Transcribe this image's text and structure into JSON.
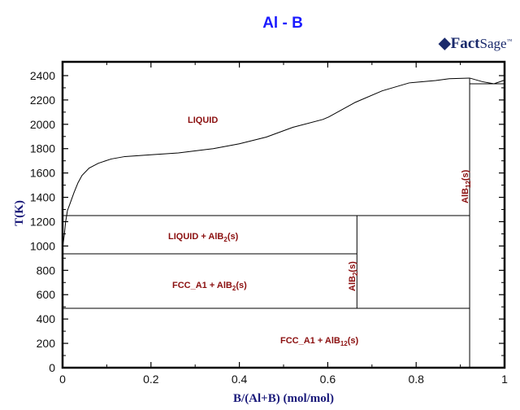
{
  "header": {
    "title": "Al - B",
    "logo": "FactSage"
  },
  "chart_data": {
    "type": "line",
    "title": "Al - B",
    "xlabel": "B/(Al+B) (mol/mol)",
    "ylabel": "T(K)",
    "xlim": [
      0,
      1
    ],
    "ylim": [
      0,
      2500
    ],
    "x_ticks": [
      "0",
      "0.2",
      "0.4",
      "0.6",
      "0.8",
      "1"
    ],
    "y_ticks": [
      "0",
      "200",
      "400",
      "600",
      "800",
      "1000",
      "1200",
      "1400",
      "1600",
      "1800",
      "2000",
      "2200",
      "2400"
    ],
    "liquidus": {
      "x": [
        0.0,
        0.004,
        0.007,
        0.011,
        0.017,
        0.026,
        0.035,
        0.044,
        0.06,
        0.081,
        0.11,
        0.141,
        0.2,
        0.262,
        0.341,
        0.4,
        0.461,
        0.521,
        0.589,
        0.602,
        0.662,
        0.723,
        0.784,
        0.844,
        0.875,
        0.921
      ],
      "y": [
        980,
        1095,
        1200,
        1290,
        1350,
        1440,
        1520,
        1580,
        1640,
        1680,
        1715,
        1735,
        1750,
        1765,
        1800,
        1840,
        1895,
        1975,
        2040,
        2060,
        2180,
        2275,
        2340,
        2360,
        2375,
        2380
      ]
    },
    "liquidus_b_rich": {
      "x": [
        0.921,
        0.95,
        0.976,
        1.0
      ],
      "y": [
        2380,
        2350,
        2333,
        2363
      ]
    },
    "invariants": [
      {
        "T": 2333,
        "x_range": [
          0.921,
          1.0
        ]
      },
      {
        "T": 1250,
        "x_range": [
          0.0,
          0.921
        ]
      },
      {
        "T": 936,
        "x_range": [
          0.0,
          0.666
        ]
      },
      {
        "T": 488,
        "x_range": [
          0.0,
          0.921
        ]
      }
    ],
    "compounds": [
      {
        "name": "AlB2(s)",
        "x": 0.666,
        "T_range": [
          488,
          1250
        ]
      },
      {
        "name": "AlB12(s)",
        "x": 0.921,
        "T_range": [
          0,
          2380
        ]
      }
    ],
    "regions": [
      {
        "label": "LIQUID",
        "x": 0.3,
        "T": 2030
      },
      {
        "label": "LIQUID + AlB2(s)",
        "x": 0.32,
        "T": 1070
      },
      {
        "label": "FCC_A1 + AlB2(s)",
        "x": 0.33,
        "T": 640
      },
      {
        "label": "FCC_A1 + AlB12(s)",
        "x": 0.59,
        "T": 230
      }
    ]
  },
  "labels": {
    "liquid": "LIQUID",
    "liq_alb2_a": "LIQUID + AlB",
    "liq_alb2_sub": "2",
    "liq_alb2_b": "(s)",
    "fcc_alb2_a": "FCC_A1 + AlB",
    "fcc_alb2_sub": "2",
    "fcc_alb2_b": "(s)",
    "fcc_alb12_a": "FCC_A1 + AlB",
    "fcc_alb12_sub": "12",
    "fcc_alb12_b": "(s)",
    "alb2_a": "AlB",
    "alb2_sub": "2",
    "alb2_b": "(s)",
    "alb12_a": "AlB",
    "alb12_sub": "12",
    "alb12_b": "(s)"
  }
}
